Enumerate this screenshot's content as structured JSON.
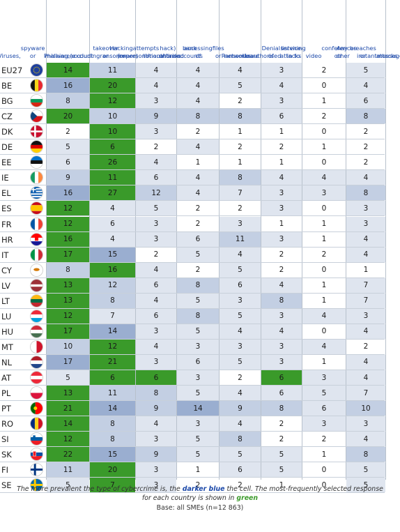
{
  "chart_data": {
    "type": "table",
    "columns": [
      "Viruses, spyware or malware (excluding ransomware)",
      "Phishing, account takeover or impersonation attacks",
      "Hacking (or attempts to hack) online bank accounts",
      "Unauthorised accessing of files or networks",
      "Ransomware",
      "Denial of service attacks",
      "Unauthorised listening in to video conferences or instant messages",
      "Any other breaches or attacks"
    ],
    "column_lines": [
      [
        "Viruses,",
        "spyware or",
        "malware",
        "(excluding",
        "ransomware)"
      ],
      [
        "Phishing,",
        "account",
        "takeover or",
        "impersonation",
        "attacks"
      ],
      [
        "Hacking (or",
        "attempts to",
        "hack) online",
        "bank accounts"
      ],
      [
        "Unauthorised",
        "accessing of",
        "files or",
        "networks"
      ],
      [
        "Ransomware"
      ],
      [
        "Denial of",
        "service attacks"
      ],
      [
        "Unauthorised",
        "listening in to",
        "video",
        "conferences or",
        "instant",
        "messages"
      ],
      [
        "Any other",
        "breaches or",
        "attacks"
      ]
    ],
    "rows": [
      "EU27",
      "BE",
      "BG",
      "CZ",
      "DK",
      "DE",
      "EE",
      "IE",
      "EL",
      "ES",
      "FR",
      "HR",
      "IT",
      "CY",
      "LV",
      "LT",
      "LU",
      "HU",
      "MT",
      "NL",
      "AT",
      "PL",
      "PT",
      "RO",
      "SI",
      "SK",
      "FI",
      "SE"
    ],
    "values": [
      [
        14,
        11,
        4,
        4,
        4,
        3,
        2,
        5
      ],
      [
        16,
        20,
        4,
        4,
        5,
        4,
        0,
        4
      ],
      [
        8,
        12,
        3,
        4,
        2,
        3,
        1,
        6
      ],
      [
        20,
        10,
        9,
        8,
        8,
        6,
        2,
        8
      ],
      [
        2,
        10,
        3,
        2,
        1,
        1,
        0,
        2
      ],
      [
        5,
        6,
        2,
        4,
        2,
        2,
        1,
        2
      ],
      [
        6,
        26,
        4,
        1,
        1,
        1,
        0,
        2
      ],
      [
        9,
        11,
        6,
        4,
        8,
        4,
        4,
        4
      ],
      [
        16,
        27,
        12,
        4,
        7,
        3,
        3,
        8
      ],
      [
        12,
        4,
        5,
        2,
        2,
        3,
        0,
        3
      ],
      [
        12,
        6,
        3,
        2,
        3,
        1,
        1,
        3
      ],
      [
        16,
        4,
        3,
        6,
        11,
        3,
        1,
        4
      ],
      [
        17,
        15,
        2,
        5,
        4,
        2,
        2,
        4
      ],
      [
        8,
        16,
        4,
        2,
        5,
        2,
        0,
        1
      ],
      [
        13,
        12,
        6,
        8,
        6,
        4,
        1,
        7
      ],
      [
        13,
        8,
        4,
        5,
        3,
        8,
        1,
        7
      ],
      [
        12,
        7,
        6,
        8,
        5,
        3,
        4,
        3
      ],
      [
        17,
        14,
        3,
        5,
        4,
        4,
        0,
        4
      ],
      [
        10,
        12,
        4,
        3,
        3,
        3,
        4,
        2
      ],
      [
        17,
        21,
        3,
        6,
        5,
        3,
        1,
        4
      ],
      [
        5,
        6,
        6,
        3,
        2,
        6,
        3,
        4
      ],
      [
        13,
        11,
        8,
        5,
        4,
        6,
        5,
        7
      ],
      [
        21,
        14,
        9,
        14,
        9,
        8,
        6,
        10
      ],
      [
        14,
        8,
        4,
        3,
        4,
        2,
        3,
        3
      ],
      [
        12,
        8,
        3,
        5,
        8,
        2,
        2,
        4
      ],
      [
        22,
        15,
        9,
        5,
        5,
        5,
        1,
        8
      ],
      [
        11,
        20,
        3,
        1,
        6,
        5,
        0,
        5
      ],
      [
        5,
        7,
        3,
        2,
        2,
        1,
        0,
        5
      ]
    ],
    "highlight_green": [
      [
        0,
        0
      ],
      [
        1,
        1
      ],
      [
        2,
        1
      ],
      [
        3,
        0
      ],
      [
        4,
        1
      ],
      [
        5,
        1
      ],
      [
        6,
        1
      ],
      [
        7,
        1
      ],
      [
        8,
        1
      ],
      [
        9,
        0
      ],
      [
        10,
        0
      ],
      [
        11,
        0
      ],
      [
        12,
        0
      ],
      [
        13,
        1
      ],
      [
        14,
        0
      ],
      [
        15,
        0
      ],
      [
        16,
        0
      ],
      [
        17,
        0
      ],
      [
        18,
        1
      ],
      [
        19,
        1
      ],
      [
        20,
        1
      ],
      [
        20,
        2
      ],
      [
        20,
        5
      ],
      [
        21,
        0
      ],
      [
        22,
        0
      ],
      [
        23,
        0
      ],
      [
        24,
        0
      ],
      [
        25,
        0
      ],
      [
        26,
        1
      ],
      [
        27,
        1
      ]
    ],
    "colors": {
      "green": "#3a9a2a",
      "dark_blue": "#9aaed0",
      "mid_blue": "#c3cfe3",
      "light_blue": "#dfe5ef",
      "white": "#ffffff",
      "header_text": "#1a47a8"
    }
  },
  "caption": {
    "line1_pre": "The more prevalent the type of cybercrime is, the ",
    "line1_em": "darker blue",
    "line1_post": " the cell. The most-frequently selected response",
    "line2_pre": "for each country is shown in ",
    "line2_em": "green",
    "base": "Base: all SMEs (n=12 863)"
  }
}
